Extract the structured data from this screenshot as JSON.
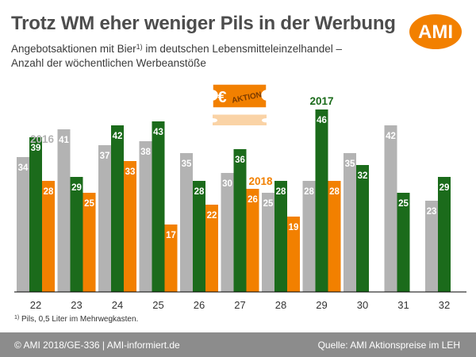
{
  "header": {
    "title": "Trotz WM eher weniger Pils in der Werbung",
    "subtitle_line1_pre": "Angebotsaktionen mit Bier",
    "subtitle_sup": "1)",
    "subtitle_line1_post": " im deutschen Lebensmitteleinzelhandel –",
    "subtitle_line2": "Anzahl der wöchentlichen Werbeanstöße",
    "logo_text": "AMI"
  },
  "badge": {
    "symbol": "€",
    "text": "AKTION"
  },
  "colors": {
    "series_2016": "#b3b3b3",
    "series_2017": "#1b6b1b",
    "series_2018": "#f28000",
    "logo": "#f28000",
    "footer_bg": "#8c8c8c",
    "title": "#4d4d4d"
  },
  "chart_data": {
    "type": "bar",
    "categories": [
      "22",
      "23",
      "24",
      "25",
      "26",
      "27",
      "28",
      "29",
      "30",
      "31",
      "32"
    ],
    "series": [
      {
        "name": "2016",
        "values": [
          34,
          41,
          37,
          38,
          35,
          30,
          25,
          28,
          35,
          42,
          23
        ]
      },
      {
        "name": "2017",
        "values": [
          39,
          29,
          42,
          43,
          28,
          36,
          28,
          46,
          32,
          25,
          29
        ]
      },
      {
        "name": "2018",
        "values": [
          28,
          25,
          33,
          17,
          22,
          26,
          19,
          28,
          null,
          null,
          null
        ]
      }
    ],
    "ylim": [
      0,
      50
    ],
    "grid": false,
    "legend": "inline labels above bars"
  },
  "footnote": {
    "sup": "1)",
    "text": " Pils, 0,5 Liter im Mehrwegkasten."
  },
  "footer": {
    "left": "© AMI 2018/GE-336 | AMI-informiert.de",
    "right": "Quelle: AMI Aktionspreise im LEH"
  }
}
